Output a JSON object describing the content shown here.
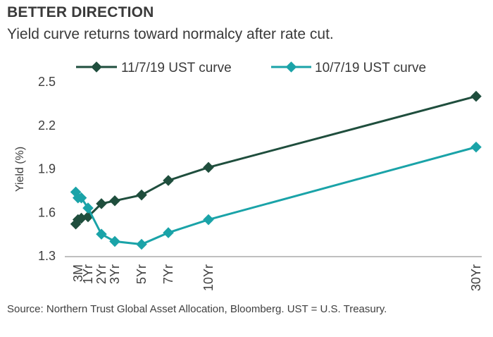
{
  "title": "BETTER DIRECTION",
  "subtitle": "Yield curve returns toward normalcy after rate cut.",
  "source": "Source: Northern Trust Global Asset Allocation, Bloomberg. UST = U.S. Treasury.",
  "colors": {
    "series1": "#1f4e3d",
    "series2": "#1aa3a8",
    "axis": "#7f7f7f"
  },
  "chart_data": {
    "type": "line",
    "x": [
      "",
      "3M",
      "",
      "1Yr",
      "2Yr",
      "3Yr",
      "5Yr",
      "7Yr",
      "10Yr",
      "30Yr"
    ],
    "x_pos_years": [
      0.083,
      0.25,
      0.5,
      1,
      2,
      3,
      5,
      7,
      10,
      30
    ],
    "ylabel": "Yield (%)",
    "ylim": [
      1.3,
      2.5
    ],
    "yticks": [
      1.3,
      1.6,
      1.9,
      2.2,
      2.5
    ],
    "ytick_labels": [
      "1.3",
      "1.6",
      "1.9",
      "2.2",
      "2.5"
    ],
    "legend_position": "top",
    "series": [
      {
        "name": "11/7/19 UST curve",
        "values": [
          1.52,
          1.55,
          1.56,
          1.57,
          1.66,
          1.68,
          1.72,
          1.82,
          1.91,
          2.4
        ]
      },
      {
        "name": "10/7/19 UST curve",
        "values": [
          1.74,
          1.7,
          1.7,
          1.63,
          1.45,
          1.4,
          1.38,
          1.46,
          1.55,
          2.05
        ]
      }
    ]
  }
}
